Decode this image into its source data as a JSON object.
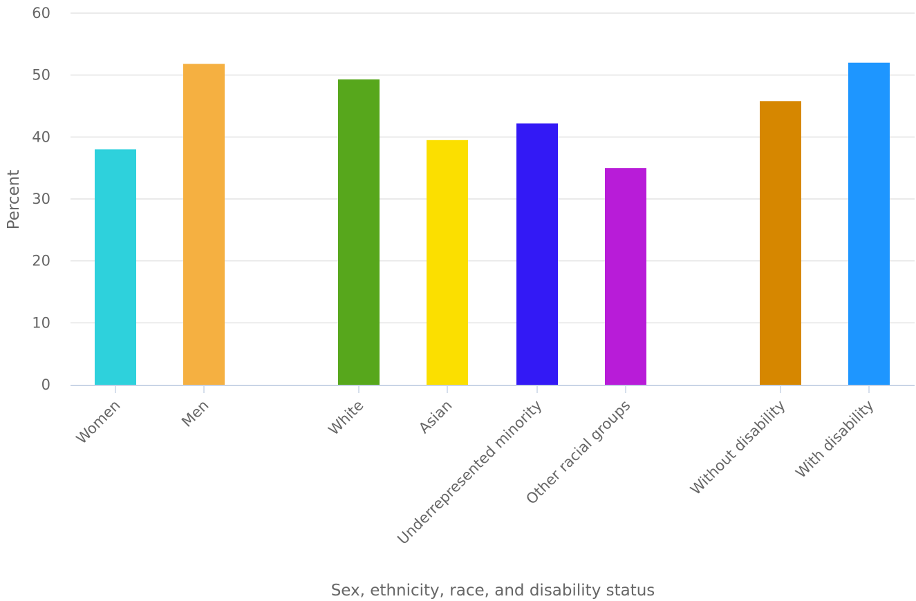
{
  "chart_data": {
    "type": "bar",
    "title": "",
    "xlabel": "Sex, ethnicity, race, and disability status",
    "ylabel": "Percent",
    "ylim": [
      0,
      60
    ],
    "yticks": [
      0,
      10,
      20,
      30,
      40,
      50,
      60
    ],
    "grid": true,
    "legend": "none",
    "groups": [
      [
        "Women",
        "Men"
      ],
      [
        "White",
        "Asian",
        "Underrepresented minority",
        "Other racial groups"
      ],
      [
        "Without disability",
        "With disability"
      ]
    ],
    "categories": [
      "Women",
      "Men",
      "White",
      "Asian",
      "Underrepresented minority",
      "Other racial groups",
      "Without disability",
      "With disability"
    ],
    "values": [
      38.0,
      51.8,
      49.3,
      39.5,
      42.2,
      35.0,
      45.8,
      52.0
    ],
    "colors": [
      "#2ed1dc",
      "#f5b041",
      "#57a71c",
      "#fbdf00",
      "#3319f5",
      "#b81cd8",
      "#d68700",
      "#1e96ff"
    ]
  },
  "colors": {
    "text": "#666666",
    "grid": "#e3e3e3",
    "axis": "#c9d4e6"
  }
}
